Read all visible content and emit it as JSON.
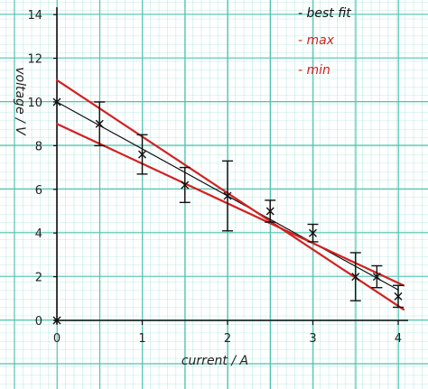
{
  "chart_data": {
    "type": "scatter",
    "title": "",
    "xlabel": "current / A",
    "ylabel": "voltage / V",
    "xlim": [
      0,
      4.2
    ],
    "ylim": [
      0,
      14.5
    ],
    "xticks": [
      "0",
      "1",
      "2",
      "3",
      "4"
    ],
    "yticks": [
      "0",
      "2",
      "4",
      "6",
      "8",
      "10",
      "12",
      "14"
    ],
    "grid": true,
    "legend_position": "top-right",
    "legend": [
      {
        "label": "- best fit",
        "color": "#111111"
      },
      {
        "label": "- max",
        "color": "#d42020"
      },
      {
        "label": "- min",
        "color": "#d42020"
      }
    ],
    "points": [
      {
        "x": 0,
        "y": 10.0,
        "err": 0
      },
      {
        "x": 0.5,
        "y": 9.0,
        "err": 1.0
      },
      {
        "x": 1.0,
        "y": 7.6,
        "err": 0.9
      },
      {
        "x": 1.5,
        "y": 6.2,
        "err": 0.8
      },
      {
        "x": 2.0,
        "y": 5.7,
        "err": 1.6
      },
      {
        "x": 2.5,
        "y": 5.0,
        "err": 0.5
      },
      {
        "x": 3.0,
        "y": 4.0,
        "err": 0.4
      },
      {
        "x": 3.5,
        "y": 2.0,
        "err": 1.1
      },
      {
        "x": 3.75,
        "y": 2.0,
        "err": 0.5
      },
      {
        "x": 4.0,
        "y": 1.1,
        "err": 0.5
      },
      {
        "x": 0,
        "y": 0,
        "err": 0
      }
    ],
    "lines": [
      {
        "name": "best fit",
        "color": "#111111",
        "from": [
          0,
          10.0
        ],
        "to": [
          4.0,
          1.4
        ]
      },
      {
        "name": "max",
        "color": "#d42020",
        "from": [
          0,
          11.0
        ],
        "to": [
          4.0,
          0.5
        ]
      },
      {
        "name": "min",
        "color": "#d42020",
        "from": [
          0,
          9.0
        ],
        "to": [
          4.0,
          1.6
        ]
      }
    ]
  }
}
